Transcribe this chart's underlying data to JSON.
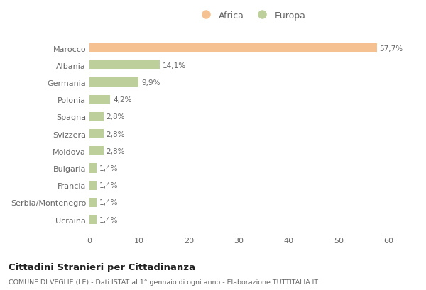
{
  "categories": [
    "Marocco",
    "Albania",
    "Germania",
    "Polonia",
    "Spagna",
    "Svizzera",
    "Moldova",
    "Bulgaria",
    "Francia",
    "Serbia/Montenegro",
    "Ucraina"
  ],
  "values": [
    57.7,
    14.1,
    9.9,
    4.2,
    2.8,
    2.8,
    2.8,
    1.4,
    1.4,
    1.4,
    1.4
  ],
  "labels": [
    "57,7%",
    "14,1%",
    "9,9%",
    "4,2%",
    "2,8%",
    "2,8%",
    "2,8%",
    "1,4%",
    "1,4%",
    "1,4%",
    "1,4%"
  ],
  "continent": [
    "Africa",
    "Europa",
    "Europa",
    "Europa",
    "Europa",
    "Europa",
    "Europa",
    "Europa",
    "Europa",
    "Europa",
    "Europa"
  ],
  "color_africa": "#F5C190",
  "color_europa": "#BDCF9B",
  "bg_color": "#FFFFFF",
  "title": "Cittadini Stranieri per Cittadinanza",
  "subtitle": "COMUNE DI VEGLIE (LE) - Dati ISTAT al 1° gennaio di ogni anno - Elaborazione TUTTITALIA.IT",
  "legend_africa": "Africa",
  "legend_europa": "Europa",
  "xlim": [
    0,
    65
  ],
  "xticks": [
    0,
    10,
    20,
    30,
    40,
    50,
    60
  ]
}
